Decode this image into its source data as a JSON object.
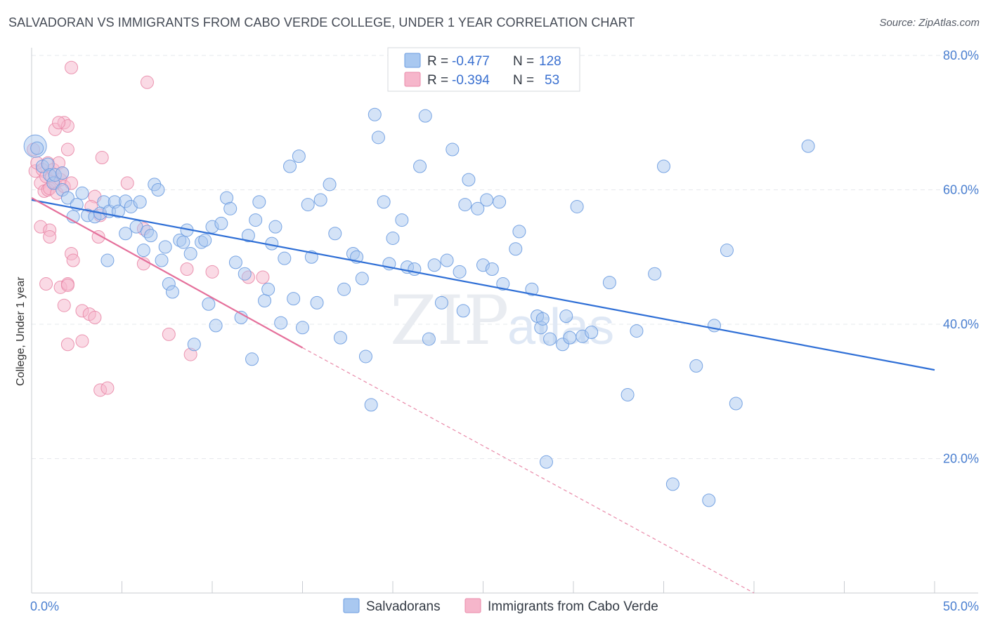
{
  "title": "SALVADORAN VS IMMIGRANTS FROM CABO VERDE COLLEGE, UNDER 1 YEAR CORRELATION CHART",
  "source": "Source: ZipAtlas.com",
  "watermark": {
    "zip": "ZIP",
    "atlas": "atlas"
  },
  "legend_top": {
    "rows": [
      {
        "r_label": "R =",
        "r_value": "-0.477",
        "n_label": "N =",
        "n_value": "128",
        "color": "#a9c8f0"
      },
      {
        "r_label": "R =",
        "r_value": "-0.394",
        "n_label": "N =",
        "n_value": "53",
        "color": "#f6b6cb"
      }
    ]
  },
  "chart_data": {
    "type": "scatter",
    "title": "SALVADORAN VS IMMIGRANTS FROM CABO VERDE COLLEGE, UNDER 1 YEAR CORRELATION CHART",
    "xlabel": "",
    "ylabel": "College, Under 1 year",
    "xlim": [
      0,
      50
    ],
    "ylim": [
      0,
      82
    ],
    "x_tick_labels": [
      "0.0%",
      "50.0%"
    ],
    "y_ticks": [
      20,
      40,
      60,
      80
    ],
    "y_tick_labels": [
      "20.0%",
      "40.0%",
      "60.0%",
      "80.0%"
    ],
    "grid": true,
    "legend_position": "bottom",
    "series": [
      {
        "name": "Salvadorans",
        "color": "#6a9be0",
        "fill": "#a9c8f0",
        "trend": {
          "x": [
            0,
            50
          ],
          "y": [
            58.5,
            33.2
          ]
        },
        "points": [
          [
            0.2,
            66.5
          ],
          [
            0.3,
            66.2
          ],
          [
            0.6,
            63.5
          ],
          [
            0.9,
            63.8
          ],
          [
            1.0,
            62.2
          ],
          [
            1.2,
            61.0
          ],
          [
            1.3,
            62.2
          ],
          [
            1.7,
            62.5
          ],
          [
            1.7,
            60.0
          ],
          [
            2.0,
            58.8
          ],
          [
            2.5,
            57.8
          ],
          [
            2.8,
            59.5
          ],
          [
            2.3,
            56.0
          ],
          [
            3.1,
            56.2
          ],
          [
            3.5,
            56.0
          ],
          [
            3.8,
            56.5
          ],
          [
            4.0,
            58.2
          ],
          [
            4.3,
            56.8
          ],
          [
            4.6,
            58.2
          ],
          [
            4.8,
            56.8
          ],
          [
            5.2,
            58.3
          ],
          [
            5.5,
            57.5
          ],
          [
            6.0,
            58.2
          ],
          [
            4.2,
            49.5
          ],
          [
            5.2,
            53.5
          ],
          [
            5.8,
            54.5
          ],
          [
            6.2,
            51.0
          ],
          [
            6.4,
            53.8
          ],
          [
            6.6,
            53.2
          ],
          [
            6.8,
            60.8
          ],
          [
            7.0,
            60.0
          ],
          [
            7.2,
            49.5
          ],
          [
            7.4,
            51.5
          ],
          [
            7.6,
            46.0
          ],
          [
            7.8,
            44.8
          ],
          [
            8.2,
            52.5
          ],
          [
            8.4,
            52.2
          ],
          [
            8.6,
            54.0
          ],
          [
            8.8,
            50.5
          ],
          [
            9.0,
            37.0
          ],
          [
            9.4,
            52.2
          ],
          [
            9.6,
            52.5
          ],
          [
            9.8,
            43.0
          ],
          [
            10.0,
            54.5
          ],
          [
            10.2,
            39.8
          ],
          [
            10.5,
            55.0
          ],
          [
            10.8,
            58.8
          ],
          [
            11.0,
            57.2
          ],
          [
            11.3,
            49.2
          ],
          [
            11.6,
            41.0
          ],
          [
            11.8,
            47.5
          ],
          [
            12.0,
            53.2
          ],
          [
            12.2,
            34.8
          ],
          [
            12.4,
            55.5
          ],
          [
            12.6,
            58.2
          ],
          [
            12.9,
            43.5
          ],
          [
            13.1,
            45.2
          ],
          [
            13.3,
            52.0
          ],
          [
            13.5,
            54.5
          ],
          [
            13.8,
            40.2
          ],
          [
            14.0,
            49.8
          ],
          [
            14.3,
            63.5
          ],
          [
            14.5,
            43.8
          ],
          [
            14.8,
            65.0
          ],
          [
            15.0,
            39.5
          ],
          [
            15.3,
            57.8
          ],
          [
            15.5,
            50.0
          ],
          [
            15.8,
            43.2
          ],
          [
            16.0,
            58.5
          ],
          [
            16.5,
            60.8
          ],
          [
            16.8,
            53.5
          ],
          [
            17.1,
            38.0
          ],
          [
            17.3,
            45.2
          ],
          [
            17.8,
            50.5
          ],
          [
            18.0,
            50.0
          ],
          [
            18.3,
            46.8
          ],
          [
            18.5,
            35.2
          ],
          [
            18.8,
            28.0
          ],
          [
            19.0,
            71.2
          ],
          [
            19.2,
            67.8
          ],
          [
            19.5,
            58.2
          ],
          [
            19.8,
            49.0
          ],
          [
            20.0,
            52.8
          ],
          [
            20.5,
            55.5
          ],
          [
            20.8,
            48.5
          ],
          [
            21.2,
            48.2
          ],
          [
            21.5,
            63.5
          ],
          [
            21.8,
            71.0
          ],
          [
            22.0,
            37.8
          ],
          [
            22.3,
            48.8
          ],
          [
            22.7,
            43.2
          ],
          [
            23.0,
            49.5
          ],
          [
            23.3,
            66.0
          ],
          [
            23.7,
            47.8
          ],
          [
            23.9,
            42.0
          ],
          [
            24.0,
            57.8
          ],
          [
            24.2,
            61.5
          ],
          [
            24.7,
            57.2
          ],
          [
            25.0,
            48.8
          ],
          [
            25.2,
            58.5
          ],
          [
            25.5,
            48.2
          ],
          [
            25.9,
            58.2
          ],
          [
            26.1,
            46.0
          ],
          [
            26.8,
            51.2
          ],
          [
            27.0,
            53.8
          ],
          [
            27.7,
            45.2
          ],
          [
            28.0,
            41.2
          ],
          [
            28.2,
            39.5
          ],
          [
            28.3,
            40.8
          ],
          [
            28.5,
            19.5
          ],
          [
            28.7,
            37.8
          ],
          [
            29.4,
            37.0
          ],
          [
            29.6,
            41.2
          ],
          [
            29.8,
            38.0
          ],
          [
            30.2,
            57.5
          ],
          [
            30.5,
            38.2
          ],
          [
            31.0,
            38.8
          ],
          [
            32.0,
            46.2
          ],
          [
            33.0,
            29.5
          ],
          [
            33.5,
            39.0
          ],
          [
            34.5,
            47.5
          ],
          [
            35.0,
            63.5
          ],
          [
            35.5,
            16.2
          ],
          [
            36.8,
            33.8
          ],
          [
            37.5,
            13.8
          ],
          [
            37.8,
            39.8
          ],
          [
            38.5,
            51.0
          ],
          [
            39.0,
            28.2
          ],
          [
            43.0,
            66.5
          ]
        ]
      },
      {
        "name": "Immigrants from Cabo Verde",
        "color": "#e98aa9",
        "fill": "#f6b6cb",
        "trend": {
          "x": [
            0,
            15
          ],
          "y": [
            58.8,
            36.5
          ],
          "dashed_to": [
            40,
            0
          ]
        },
        "points": [
          [
            0.1,
            66.0
          ],
          [
            0.2,
            62.8
          ],
          [
            0.3,
            64.0
          ],
          [
            0.5,
            61.0
          ],
          [
            0.6,
            63.0
          ],
          [
            0.7,
            59.8
          ],
          [
            0.8,
            62.0
          ],
          [
            0.9,
            60.0
          ],
          [
            0.9,
            64.0
          ],
          [
            1.0,
            60.2
          ],
          [
            1.1,
            62.0
          ],
          [
            1.2,
            63.0
          ],
          [
            1.3,
            61.0
          ],
          [
            1.4,
            59.5
          ],
          [
            1.5,
            64.0
          ],
          [
            1.6,
            61.5
          ],
          [
            1.7,
            62.5
          ],
          [
            1.8,
            60.5
          ],
          [
            2.0,
            66.0
          ],
          [
            2.2,
            61.0
          ],
          [
            1.3,
            69.0
          ],
          [
            1.8,
            70.0
          ],
          [
            2.0,
            69.5
          ],
          [
            1.5,
            70.0
          ],
          [
            2.2,
            78.2
          ],
          [
            6.4,
            76.0
          ],
          [
            3.9,
            64.8
          ],
          [
            3.5,
            59.0
          ],
          [
            3.3,
            57.5
          ],
          [
            3.8,
            56.2
          ],
          [
            5.3,
            61.0
          ],
          [
            0.5,
            54.5
          ],
          [
            1.0,
            54.0
          ],
          [
            1.0,
            53.0
          ],
          [
            2.2,
            50.5
          ],
          [
            2.3,
            49.5
          ],
          [
            3.7,
            53.0
          ],
          [
            0.8,
            46.0
          ],
          [
            1.6,
            45.5
          ],
          [
            2.0,
            46.0
          ],
          [
            2.0,
            45.8
          ],
          [
            2.8,
            42.0
          ],
          [
            3.2,
            41.5
          ],
          [
            3.5,
            41.0
          ],
          [
            1.8,
            42.8
          ],
          [
            2.0,
            37.0
          ],
          [
            2.8,
            37.5
          ],
          [
            3.8,
            30.2
          ],
          [
            4.2,
            30.5
          ],
          [
            6.2,
            49.0
          ],
          [
            6.2,
            54.2
          ],
          [
            7.6,
            38.5
          ],
          [
            8.6,
            48.2
          ],
          [
            8.8,
            35.5
          ],
          [
            10.0,
            47.8
          ],
          [
            12.0,
            47.0
          ],
          [
            12.8,
            47.0
          ]
        ]
      }
    ]
  },
  "legend_bottom": {
    "items": [
      {
        "label": "Salvadorans",
        "color": "#a9c8f0"
      },
      {
        "label": "Immigrants from Cabo Verde",
        "color": "#f6b6cb"
      }
    ]
  }
}
